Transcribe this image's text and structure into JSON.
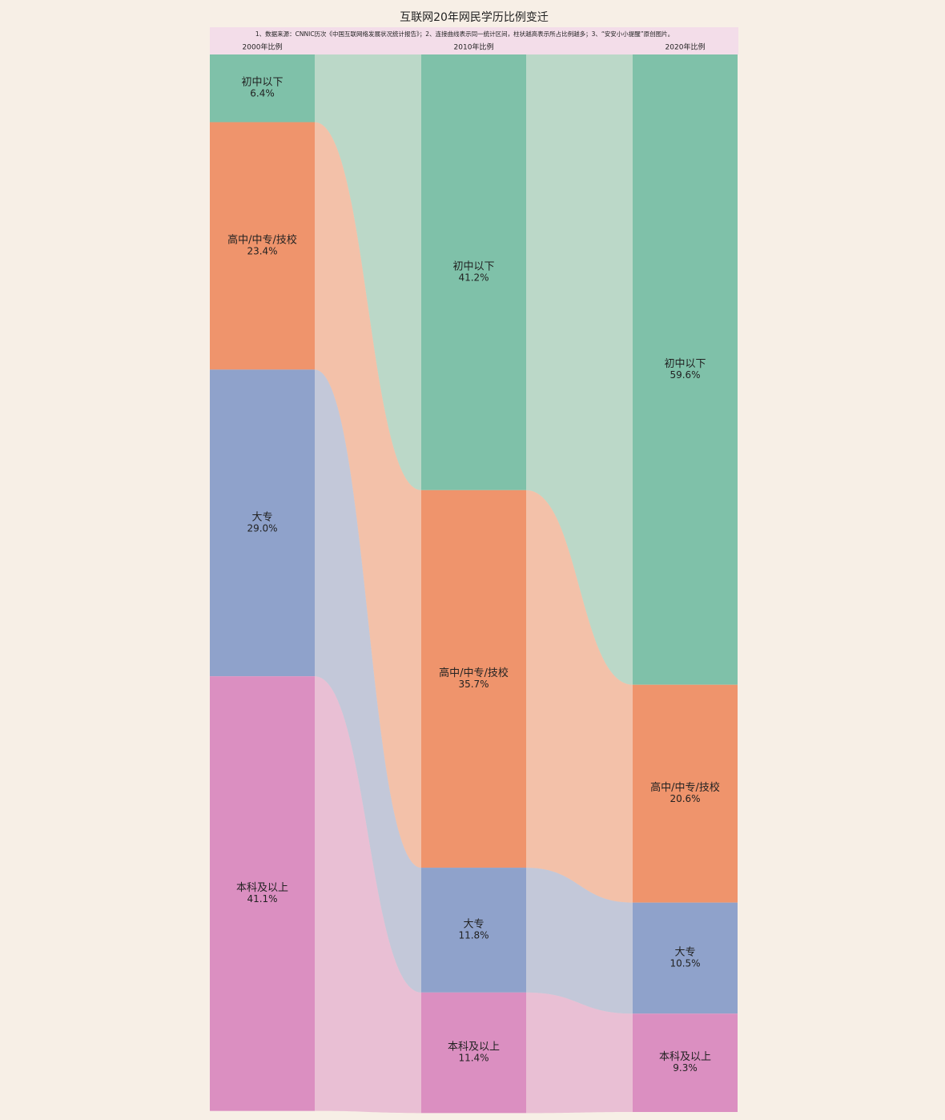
{
  "chart_data": {
    "type": "alluvial",
    "title": "互联网20年网民学历比例变迁",
    "subtitle": "1、数据来源：CNNIC历次《中国互联网络发展状况统计报告》；2、连接曲线表示同一统计区间，柱状越高表示所占比例越多；3、“安安小小提醒”原创图片。",
    "categories": [
      "2000年比例",
      "2010年比例",
      "2020年比例"
    ],
    "ylim": [
      0,
      100
    ],
    "series": [
      {
        "name": "初中以下",
        "color": "#7fc1a9",
        "values": [
          6.4,
          41.2,
          59.6
        ],
        "value_labels": [
          "6.4%",
          "41.2%",
          "59.6%"
        ]
      },
      {
        "name": "高中/中专/技校",
        "color": "#ef946c",
        "values": [
          23.4,
          35.7,
          20.6
        ],
        "value_labels": [
          "23.4%",
          "35.7%",
          "20.6%"
        ]
      },
      {
        "name": "大专",
        "color": "#8fa2cb",
        "values": [
          29.0,
          11.8,
          10.5
        ],
        "value_labels": [
          "29.0%",
          "11.8%",
          "10.5%"
        ]
      },
      {
        "name": "本科及以上",
        "color": "#db8fc1",
        "values": [
          41.1,
          11.4,
          9.3
        ],
        "value_labels": [
          "41.1%",
          "11.4%",
          "9.3%"
        ]
      }
    ]
  }
}
